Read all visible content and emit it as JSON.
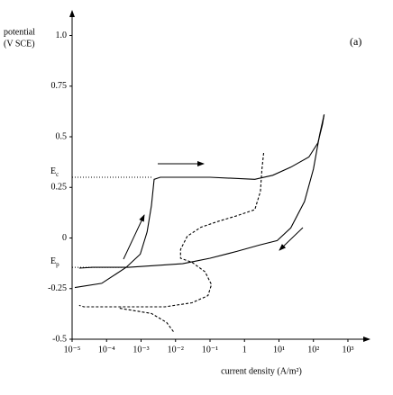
{
  "chart_data": {
    "type": "line",
    "ylabel": [
      "potential",
      "(V SCE)"
    ],
    "xlabel": "current density (A/m²)",
    "panel_label": "(a)",
    "annotations": [
      {
        "main": "E",
        "sub": "c",
        "y": 0.3
      },
      {
        "main": "E",
        "sub": "p",
        "y": -0.145
      }
    ],
    "xscale": "log",
    "xlim": [
      1e-05,
      4000
    ],
    "ylim": [
      -0.5,
      1.1
    ],
    "xticks": [
      {
        "value": 1e-05,
        "label": "10⁻⁵"
      },
      {
        "value": 0.0001,
        "label": "10⁻⁴"
      },
      {
        "value": 0.001,
        "label": "10⁻³"
      },
      {
        "value": 0.01,
        "label": "10⁻²"
      },
      {
        "value": 0.1,
        "label": "10⁻¹"
      },
      1,
      {
        "value": 10,
        "label": "10¹"
      },
      {
        "value": 100,
        "label": "10²"
      },
      {
        "value": 1000,
        "label": "10³"
      }
    ],
    "yticks": [
      {
        "value": 1,
        "label": "1.0"
      },
      0.75,
      0.5,
      0.25,
      0,
      -0.25,
      -0.5
    ],
    "grid": false,
    "series": [
      {
        "color": "#000000",
        "style": "solid",
        "x": [
          1.2e-05,
          7.2e-05,
          0.00018,
          0.00037,
          0.00095,
          0.0015,
          0.002,
          0.0024,
          0.0036,
          0.1,
          2.0,
          6.6,
          22,
          74,
          135,
          182,
          204
        ],
        "values": [
          -0.245,
          -0.224,
          -0.18,
          -0.145,
          -0.08,
          0.03,
          0.16,
          0.29,
          0.3,
          0.3,
          0.29,
          0.31,
          0.35,
          0.4,
          0.47,
          0.56,
          0.61
        ]
      },
      {
        "color": "#000000",
        "style": "solid",
        "x": [
          204,
          151,
          100,
          55,
          22,
          8.9,
          2.7,
          0.6,
          0.1,
          0.04,
          0.016,
          0.0027,
          0.00044,
          4e-05,
          1.6e-05
        ],
        "values": [
          0.61,
          0.51,
          0.34,
          0.18,
          0.05,
          -0.013,
          -0.035,
          -0.066,
          -0.1,
          -0.114,
          -0.127,
          -0.136,
          -0.145,
          -0.145,
          -0.149
        ]
      },
      {
        "color": "#000000",
        "style": "dashed",
        "x": [
          3.6,
          3.2,
          2.9,
          2.0,
          0.6,
          0.18,
          0.054,
          0.022,
          0.014,
          0.014,
          0.03,
          0.072,
          0.11,
          0.087,
          0.03,
          0.0049,
          0.00024,
          2.2e-05,
          1.6e-05
        ],
        "values": [
          0.42,
          0.34,
          0.23,
          0.14,
          0.11,
          0.083,
          0.053,
          0.009,
          -0.057,
          -0.1,
          -0.12,
          -0.167,
          -0.23,
          -0.285,
          -0.32,
          -0.34,
          -0.34,
          -0.34,
          -0.333
        ]
      },
      {
        "color": "#000000",
        "style": "dashed",
        "x": [
          0.00024,
          0.002,
          0.0055,
          0.0089
        ],
        "values": [
          -0.347,
          -0.373,
          -0.417,
          -0.465
        ]
      }
    ]
  }
}
